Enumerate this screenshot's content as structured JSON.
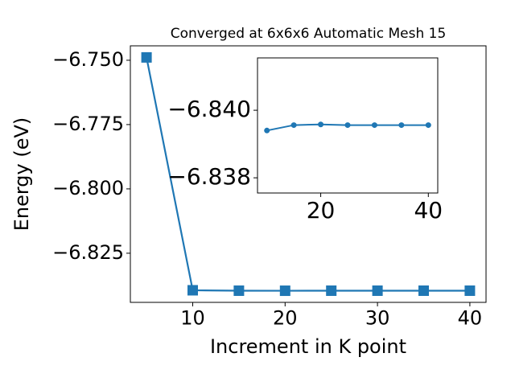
{
  "chart_data": [
    {
      "type": "line",
      "title": "Converged at 6x6x6 Automatic Mesh 15",
      "xlabel": "Increment in K point",
      "ylabel": "Energy (eV)",
      "x": [
        5,
        10,
        15,
        20,
        25,
        30,
        35,
        40
      ],
      "series": [
        {
          "color": "#1f77b4",
          "marker": "square",
          "values": [
            -6.7489,
            -6.8394,
            -6.83956,
            -6.83958,
            -6.83956,
            -6.83956,
            -6.83956,
            -6.83956
          ]
        }
      ],
      "xlim": [
        3.25,
        41.75
      ],
      "xticks": [
        10,
        20,
        30,
        40
      ],
      "ylim": [
        -6.8441,
        -6.7444
      ],
      "yticks": [
        {
          "value": -6.75,
          "label": "−6.750"
        },
        {
          "value": -6.775,
          "label": "−6.775"
        },
        {
          "value": -6.8,
          "label": "−6.800"
        },
        {
          "value": -6.825,
          "label": "−6.825"
        }
      ]
    },
    {
      "type": "line",
      "x": [
        10,
        15,
        20,
        25,
        30,
        35,
        40
      ],
      "series": [
        {
          "color": "#1f77b4",
          "marker": "circle",
          "values": [
            -6.8394,
            -6.83956,
            -6.83958,
            -6.83956,
            -6.83956,
            -6.83956,
            -6.83956
          ]
        }
      ],
      "xlim": [
        8.25,
        41.75
      ],
      "xticks": [
        20,
        40
      ],
      "ylim": [
        -6.83755,
        -6.84155
      ],
      "yticks": [
        {
          "value": -6.84,
          "label": "−6.840"
        },
        {
          "value": -6.838,
          "label": "−6.838"
        }
      ]
    }
  ]
}
